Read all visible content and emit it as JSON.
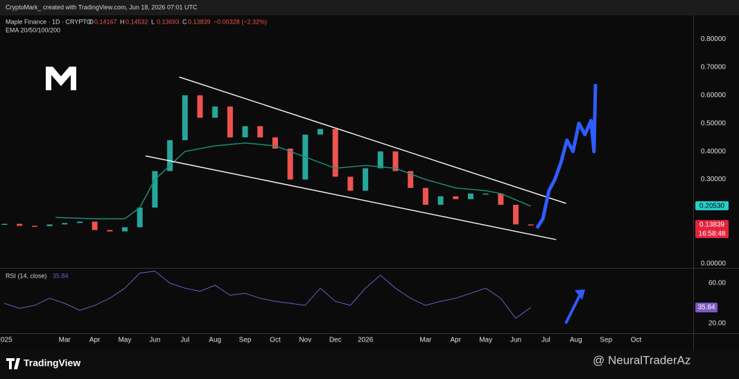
{
  "header": {
    "credit": "CryptoMark_ created with TradingView.com, Jun 18, 2026 07:01 UTC",
    "brand": "TradingView",
    "watermark": "@ NeuralTraderAz"
  },
  "chart_data": [
    {
      "type": "candlestick",
      "title": "Maple Finance · 1D · CRYPTO",
      "ohlc": [
        {
          "label": "O",
          "value": "0.14167"
        },
        {
          "label": "H",
          "value": "0.14532"
        },
        {
          "label": "L",
          "value": "0.13693"
        },
        {
          "label": "C",
          "value": "0.13839"
        }
      ],
      "change": "−0.00328 (−2.32%)",
      "up_color": "#26a69a",
      "down_color": "#ef5350",
      "xlim": [
        -0.15,
        22.9
      ],
      "xticks": [
        {
          "value": 0,
          "label": "2025"
        },
        {
          "value": 2,
          "label": "Mar"
        },
        {
          "value": 3,
          "label": "Apr"
        },
        {
          "value": 4,
          "label": "May"
        },
        {
          "value": 5,
          "label": "Jun"
        },
        {
          "value": 6,
          "label": "Jul"
        },
        {
          "value": 7,
          "label": "Aug"
        },
        {
          "value": 8,
          "label": "Sep"
        },
        {
          "value": 9,
          "label": "Oct"
        },
        {
          "value": 10,
          "label": "Nov"
        },
        {
          "value": 11,
          "label": "Dec"
        },
        {
          "value": 12,
          "label": "2026"
        },
        {
          "value": 14,
          "label": "Mar"
        },
        {
          "value": 15,
          "label": "Apr"
        },
        {
          "value": 16,
          "label": "May"
        },
        {
          "value": 17,
          "label": "Jun"
        },
        {
          "value": 18,
          "label": "Jul"
        },
        {
          "value": 19,
          "label": "Aug"
        },
        {
          "value": 20,
          "label": "Sep"
        },
        {
          "value": 21,
          "label": "Oct"
        }
      ],
      "ylim": [
        -0.015,
        0.885
      ],
      "yticks": [
        {
          "value": 0,
          "label": "0.00000"
        },
        {
          "value": 0.3,
          "label": "0.30000"
        },
        {
          "value": 0.4,
          "label": "0.40000"
        },
        {
          "value": 0.5,
          "label": "0.50000"
        },
        {
          "value": 0.6,
          "label": "0.60000"
        },
        {
          "value": 0.7,
          "label": "0.70000"
        },
        {
          "value": 0.8,
          "label": "0.80000"
        }
      ],
      "series": [
        {
          "color": "#26a69a",
          "x": [
            0,
            0.5,
            1,
            1.5,
            2,
            2.5,
            3,
            3.5,
            4,
            4.5,
            5,
            5.5,
            6,
            6.5,
            7,
            7.5,
            8,
            8.5,
            9,
            9.5,
            10,
            10.5,
            11,
            11.5,
            12,
            12.5,
            13,
            13.5,
            14,
            14.5,
            15,
            15.5,
            16,
            16.5,
            17,
            17.5
          ],
          "values": [
            0.142,
            0.135,
            0.134,
            0.14,
            0.145,
            0.15,
            0.12,
            0.115,
            0.13,
            0.2,
            0.33,
            0.44,
            0.6,
            0.52,
            0.56,
            0.45,
            0.49,
            0.45,
            0.41,
            0.3,
            0.46,
            0.48,
            0.31,
            0.26,
            0.34,
            0.4,
            0.33,
            0.27,
            0.21,
            0.24,
            0.23,
            0.25,
            0.25,
            0.21,
            0.14,
            0.13839
          ]
        },
        {
          "name": "EMA 20/50/100/200",
          "color": "#1f8c7a",
          "x": [
            1.7,
            3,
            4,
            4.5,
            5,
            6,
            7,
            8,
            9,
            10,
            11,
            12,
            13,
            14,
            15,
            16,
            16.5,
            17.5
          ],
          "values": [
            0.165,
            0.16,
            0.16,
            0.2,
            0.3,
            0.4,
            0.42,
            0.43,
            0.42,
            0.38,
            0.34,
            0.35,
            0.34,
            0.3,
            0.27,
            0.26,
            0.25,
            0.2053
          ]
        }
      ],
      "projection": {
        "color": "#2f5cff",
        "x": [
          17.7,
          17.9,
          18.1,
          18.3,
          18.5,
          18.7,
          18.9,
          19.1,
          19.3,
          19.5,
          19.6,
          19.65
        ],
        "values": [
          0.127,
          0.16,
          0.26,
          0.3,
          0.36,
          0.44,
          0.4,
          0.5,
          0.46,
          0.51,
          0.4,
          0.64
        ]
      },
      "trendlines": [
        {
          "x": [
            5.81,
            18.67
          ],
          "values": [
            0.665,
            0.215
          ]
        },
        {
          "x": [
            4.69,
            18.34
          ],
          "values": [
            0.384,
            0.086
          ]
        }
      ],
      "price_labels": [
        {
          "value": 0.2053,
          "label": "0.20530",
          "color": "#26d0ce"
        },
        {
          "value": 0.13839,
          "label": "0.13839",
          "countdown": "16:58:48",
          "color": "#e5223b"
        }
      ]
    },
    {
      "type": "line",
      "title": "RSI (14, close)",
      "last": {
        "value": 35.84,
        "label": "35.84"
      },
      "ylim": [
        11.7,
        73.8
      ],
      "yticks": [
        {
          "value": 20,
          "label": "20.00"
        },
        {
          "value": 60,
          "label": "60.00"
        }
      ],
      "series": [
        {
          "color": "#7e57c2",
          "x": [
            0,
            0.5,
            1,
            1.5,
            2,
            2.5,
            3,
            3.5,
            4,
            4.5,
            5,
            5.5,
            6,
            6.5,
            7,
            7.5,
            8,
            8.5,
            9,
            9.5,
            10,
            10.5,
            11,
            11.5,
            12,
            12.5,
            13,
            13.5,
            14,
            14.5,
            15,
            15.5,
            16,
            16.5,
            17,
            17.5
          ],
          "values": [
            40,
            35,
            38,
            45,
            40,
            33,
            38,
            45,
            55,
            70,
            72,
            60,
            55,
            52,
            58,
            48,
            50,
            45,
            42,
            40,
            38,
            55,
            42,
            38,
            55,
            68,
            55,
            45,
            38,
            42,
            45,
            50,
            55,
            45,
            25,
            36
          ]
        }
      ]
    }
  ]
}
